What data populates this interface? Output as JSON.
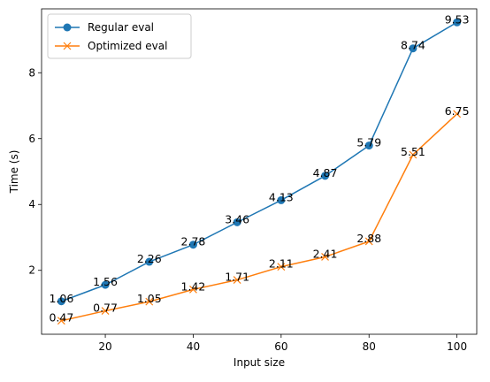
{
  "chart_data": {
    "type": "line",
    "title": "",
    "xlabel": "Input size",
    "ylabel": "Time (s)",
    "x": [
      10,
      20,
      30,
      40,
      50,
      60,
      70,
      80,
      90,
      100
    ],
    "xlim": [
      5.5,
      104.5
    ],
    "ylim": [
      0.06,
      9.94
    ],
    "xticks": [
      20,
      40,
      60,
      80,
      100
    ],
    "yticks": [
      2,
      4,
      6,
      8
    ],
    "grid": false,
    "legend": "top-left",
    "series": [
      {
        "name": "Regular eval",
        "marker": "circle",
        "color": "#1f77b4",
        "values": [
          1.06,
          1.56,
          2.26,
          2.78,
          3.46,
          4.13,
          4.87,
          5.79,
          8.74,
          9.53
        ],
        "labels": [
          "1.06",
          "1.56",
          "2.26",
          "2.78",
          "3.46",
          "4.13",
          "4.87",
          "5.79",
          "8.74",
          "9.53"
        ]
      },
      {
        "name": "Optimized eval",
        "marker": "x",
        "color": "#ff7f0e",
        "values": [
          0.47,
          0.77,
          1.05,
          1.42,
          1.71,
          2.11,
          2.41,
          2.88,
          5.51,
          6.75
        ],
        "labels": [
          "0.47",
          "0.77",
          "1.05",
          "1.42",
          "1.71",
          "2.11",
          "2.41",
          "2.88",
          "5.51",
          "6.75"
        ]
      }
    ]
  }
}
